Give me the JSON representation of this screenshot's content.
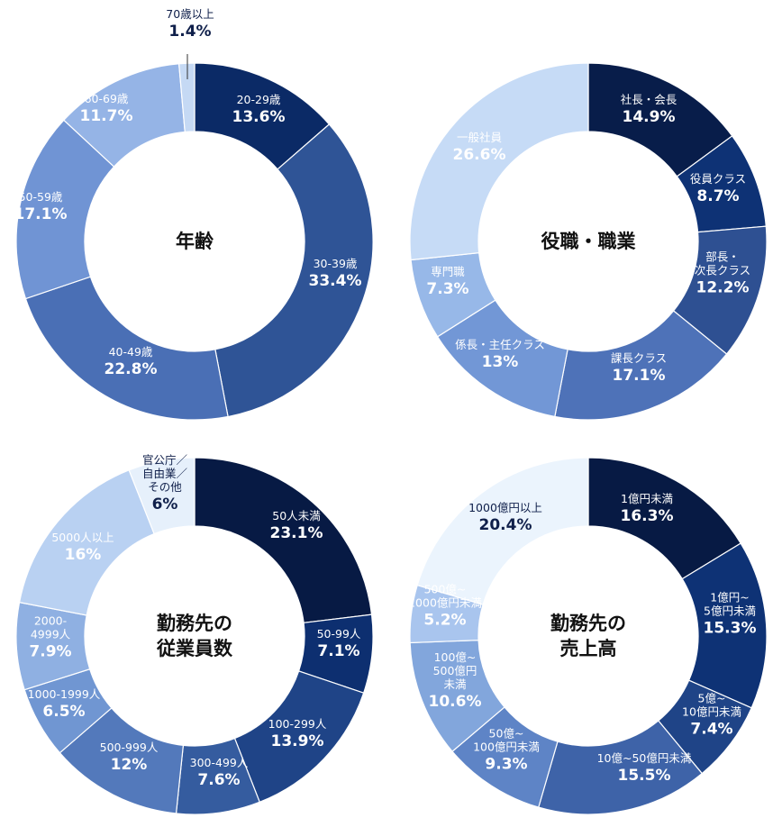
{
  "chart_data": [
    {
      "type": "pie",
      "title": "年齢",
      "title_lines": [
        "年齢"
      ],
      "categories": [
        "20-29歳",
        "30-39歳",
        "40-49歳",
        "50-59歳",
        "60-69歳",
        "70歳以上"
      ],
      "values": [
        13.6,
        33.4,
        22.8,
        17.1,
        11.7,
        1.4
      ],
      "labels": [
        {
          "name": [
            "20-29歳"
          ],
          "value": "13.6%"
        },
        {
          "name": [
            "30-39歳"
          ],
          "value": "33.4%"
        },
        {
          "name": [
            "40-49歳"
          ],
          "value": "22.8%"
        },
        {
          "name": [
            "50-59歳"
          ],
          "value": "17.1%"
        },
        {
          "name": [
            "60-69歳"
          ],
          "value": "11.7%"
        },
        {
          "name": [
            "70歳以上"
          ],
          "value": "1.4%"
        }
      ],
      "colors": [
        "#0b2a66",
        "#2f5496",
        "#4a6fb5",
        "#7094d4",
        "#95b4e6",
        "#c5d9f4"
      ]
    },
    {
      "type": "pie",
      "title": "役職・職業",
      "title_lines": [
        "役職・職業"
      ],
      "categories": [
        "社長・会長",
        "役員クラス",
        "部長・次長クラス",
        "課長クラス",
        "係長・主任クラス",
        "専門職",
        "一般社員"
      ],
      "values": [
        14.9,
        8.7,
        12.2,
        17.1,
        13,
        7.3,
        26.6
      ],
      "labels": [
        {
          "name": [
            "社長・会長"
          ],
          "value": "14.9%"
        },
        {
          "name": [
            "役員クラス"
          ],
          "value": "8.7%"
        },
        {
          "name": [
            "部長・",
            "次長クラス"
          ],
          "value": "12.2%"
        },
        {
          "name": [
            "課長クラス"
          ],
          "value": "17.1%"
        },
        {
          "name": [
            "係長・主任クラス"
          ],
          "value": "13%"
        },
        {
          "name": [
            "専門職"
          ],
          "value": "7.3%"
        },
        {
          "name": [
            "一般社員"
          ],
          "value": "26.6%"
        }
      ],
      "colors": [
        "#081d4a",
        "#0e3275",
        "#2e5092",
        "#4e72b8",
        "#7297d6",
        "#97b8e8",
        "#c6dbf6"
      ]
    },
    {
      "type": "pie",
      "title": "勤務先の従業員数",
      "title_lines": [
        "勤務先の",
        "従業員数"
      ],
      "categories": [
        "50人未満",
        "50-99人",
        "100-299人",
        "300-499人",
        "500-999人",
        "1000-1999人",
        "2000-4999人",
        "5000人以上",
        "官公庁／自由業／その他"
      ],
      "values": [
        23.1,
        7.1,
        13.9,
        7.6,
        12,
        6.5,
        7.9,
        16,
        6
      ],
      "labels": [
        {
          "name": [
            "50人未満"
          ],
          "value": "23.1%"
        },
        {
          "name": [
            "50-99人"
          ],
          "value": "7.1%"
        },
        {
          "name": [
            "100-299人"
          ],
          "value": "13.9%"
        },
        {
          "name": [
            "300-499人"
          ],
          "value": "7.6%"
        },
        {
          "name": [
            "500-999人"
          ],
          "value": "12%"
        },
        {
          "name": [
            "1000-1999人"
          ],
          "value": "6.5%"
        },
        {
          "name": [
            "2000-",
            "4999人"
          ],
          "value": "7.9%"
        },
        {
          "name": [
            "5000人以上"
          ],
          "value": "16%"
        },
        {
          "name": [
            "官公庁／",
            "自由業／",
            "その他"
          ],
          "value": "6%"
        }
      ],
      "colors": [
        "#071a44",
        "#0d2f70",
        "#1f4487",
        "#355c9f",
        "#5379bb",
        "#7096d2",
        "#8fb0e2",
        "#b9d1f2",
        "#e6f0fb"
      ]
    },
    {
      "type": "pie",
      "title": "勤務先の売上高",
      "title_lines": [
        "勤務先の",
        "売上高"
      ],
      "categories": [
        "1億円未満",
        "1億円~5億円未満",
        "5億~10億円未満",
        "10億~50億円未満",
        "50億~100億円未満",
        "100億~500億円未満",
        "500億~1000億円未満",
        "1000億円以上"
      ],
      "values": [
        16.3,
        15.3,
        7.4,
        15.5,
        9.3,
        10.6,
        5.2,
        20.4
      ],
      "labels": [
        {
          "name": [
            "1億円未満"
          ],
          "value": "16.3%"
        },
        {
          "name": [
            "1億円~",
            "5億円未満"
          ],
          "value": "15.3%"
        },
        {
          "name": [
            "5億~",
            "10億円未満"
          ],
          "value": "7.4%"
        },
        {
          "name": [
            "10億~50億円未満"
          ],
          "value": "15.5%"
        },
        {
          "name": [
            "50億~",
            "100億円未満"
          ],
          "value": "9.3%"
        },
        {
          "name": [
            "100億~",
            "500億円",
            "未満"
          ],
          "value": "10.6%"
        },
        {
          "name": [
            "500億~",
            "1000億円未満"
          ],
          "value": "5.2%"
        },
        {
          "name": [
            "1000億円以上"
          ],
          "value": "20.4%"
        }
      ],
      "colors": [
        "#071a44",
        "#0e3275",
        "#1f4487",
        "#3e63a8",
        "#5e84c6",
        "#82a6dc",
        "#a9c5ee",
        "#ebf4fd"
      ]
    }
  ]
}
